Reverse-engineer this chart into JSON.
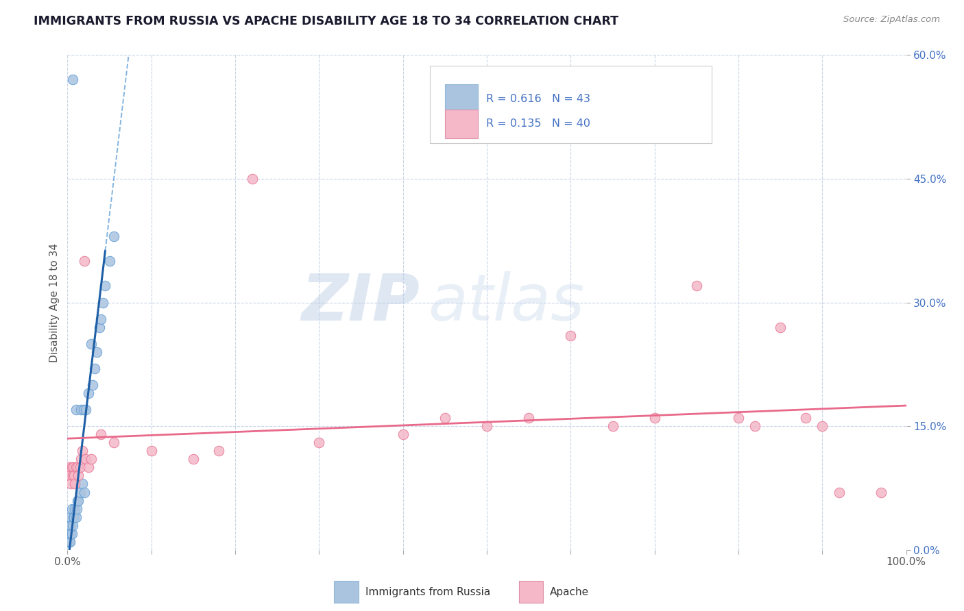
{
  "title": "IMMIGRANTS FROM RUSSIA VS APACHE DISABILITY AGE 18 TO 34 CORRELATION CHART",
  "source": "Source: ZipAtlas.com",
  "ylabel": "Disability Age 18 to 34",
  "xlim": [
    0,
    1.0
  ],
  "ylim": [
    0,
    0.6
  ],
  "xticks": [
    0.0,
    0.1,
    0.2,
    0.3,
    0.4,
    0.5,
    0.6,
    0.7,
    0.8,
    0.9,
    1.0
  ],
  "xtick_labels_show": [
    "0.0%",
    "",
    "",
    "",
    "",
    "",
    "",
    "",
    "",
    "",
    "100.0%"
  ],
  "yticks": [
    0.0,
    0.15,
    0.3,
    0.45,
    0.6
  ],
  "ytick_labels": [
    "0.0%",
    "15.0%",
    "30.0%",
    "45.0%",
    "60.0%"
  ],
  "series1_label": "Immigrants from Russia",
  "series1_color": "#aac4e0",
  "series1_edge_color": "#5b9bd5",
  "series1_R": "0.616",
  "series1_N": "43",
  "series2_label": "Apache",
  "series2_color": "#f4b8c8",
  "series2_edge_color": "#e87090",
  "series2_R": "0.135",
  "series2_N": "40",
  "line1_color": "#1f5fa6",
  "line2_color": "#e8698a",
  "watermark_text": "ZIP",
  "watermark_text2": "atlas",
  "legend_R_color": "#4472c4",
  "background_color": "#ffffff",
  "plot_bg_color": "#ffffff",
  "grid_color": "#c8d4e8",
  "series1_x": [
    0.001,
    0.001,
    0.001,
    0.001,
    0.001,
    0.002,
    0.002,
    0.002,
    0.002,
    0.003,
    0.003,
    0.003,
    0.004,
    0.004,
    0.005,
    0.005,
    0.006,
    0.007,
    0.008,
    0.009,
    0.01,
    0.01,
    0.011,
    0.012,
    0.013,
    0.015,
    0.016,
    0.018,
    0.019,
    0.02,
    0.022,
    0.025,
    0.028,
    0.03,
    0.032,
    0.035,
    0.038,
    0.04,
    0.042,
    0.045,
    0.05,
    0.055,
    0.006
  ],
  "series1_y": [
    0.01,
    0.01,
    0.01,
    0.02,
    0.02,
    0.01,
    0.01,
    0.02,
    0.03,
    0.01,
    0.02,
    0.04,
    0.02,
    0.03,
    0.02,
    0.05,
    0.03,
    0.04,
    0.04,
    0.05,
    0.04,
    0.17,
    0.05,
    0.06,
    0.06,
    0.07,
    0.17,
    0.08,
    0.17,
    0.07,
    0.17,
    0.19,
    0.25,
    0.2,
    0.22,
    0.24,
    0.27,
    0.28,
    0.3,
    0.32,
    0.35,
    0.38,
    0.57
  ],
  "series2_x": [
    0.002,
    0.003,
    0.004,
    0.005,
    0.006,
    0.007,
    0.008,
    0.009,
    0.01,
    0.012,
    0.013,
    0.015,
    0.016,
    0.018,
    0.02,
    0.022,
    0.025,
    0.028,
    0.04,
    0.055,
    0.1,
    0.15,
    0.18,
    0.22,
    0.3,
    0.4,
    0.45,
    0.5,
    0.55,
    0.6,
    0.65,
    0.7,
    0.75,
    0.8,
    0.82,
    0.85,
    0.88,
    0.9,
    0.92,
    0.97
  ],
  "series2_y": [
    0.1,
    0.09,
    0.08,
    0.1,
    0.09,
    0.1,
    0.09,
    0.08,
    0.1,
    0.1,
    0.09,
    0.1,
    0.11,
    0.12,
    0.35,
    0.11,
    0.1,
    0.11,
    0.14,
    0.13,
    0.12,
    0.11,
    0.12,
    0.45,
    0.13,
    0.14,
    0.16,
    0.15,
    0.16,
    0.26,
    0.15,
    0.16,
    0.32,
    0.16,
    0.15,
    0.27,
    0.16,
    0.15,
    0.07,
    0.07
  ],
  "line1_x_solid_end": 0.045,
  "line1_x_dashed_end": 0.32,
  "line1_intercept": -0.02,
  "line1_slope": 8.5,
  "line2_intercept": 0.135,
  "line2_slope": 0.04
}
